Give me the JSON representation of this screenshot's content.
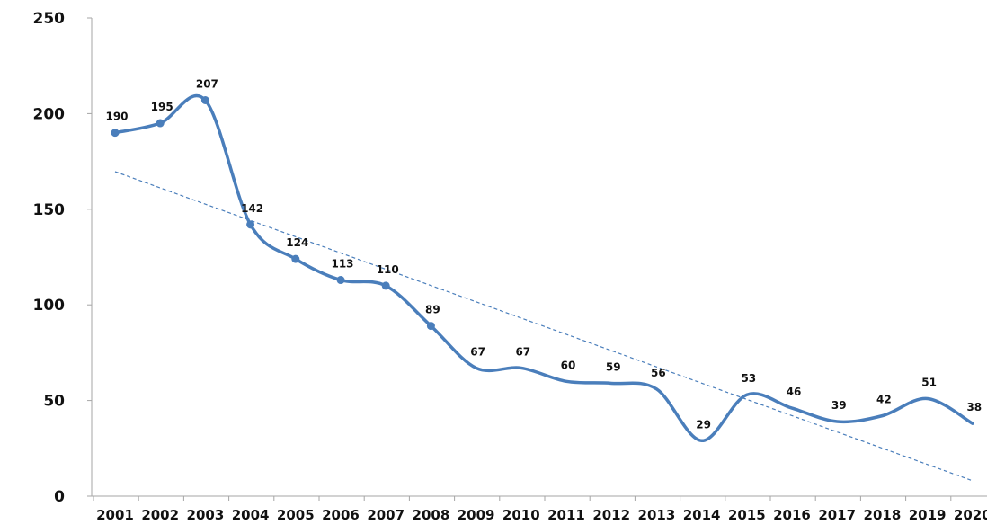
{
  "chart_data": {
    "type": "line",
    "title": "",
    "xlabel": "",
    "ylabel": "",
    "categories": [
      "2001",
      "2002",
      "2003",
      "2004",
      "2005",
      "2006",
      "2007",
      "2008",
      "2009",
      "2010",
      "2011",
      "2012",
      "2013",
      "2014",
      "2015",
      "2016",
      "2017",
      "2018",
      "2019",
      "2020"
    ],
    "series": [
      {
        "values": [
          190,
          195,
          207,
          142,
          124,
          113,
          110,
          89,
          67,
          67,
          60,
          59,
          56,
          29,
          53,
          46,
          39,
          42,
          51,
          38
        ],
        "color": "#4a7ebb",
        "smooth": true,
        "markers_visible_through": "2008",
        "data_labels": true
      }
    ],
    "trendline": {
      "type": "linear",
      "style": "dashed",
      "color": "#4a7ebb"
    },
    "ylim": [
      0,
      250
    ],
    "yticks": [
      0,
      50,
      100,
      150,
      200,
      250
    ],
    "grid": false,
    "legend": "none"
  }
}
